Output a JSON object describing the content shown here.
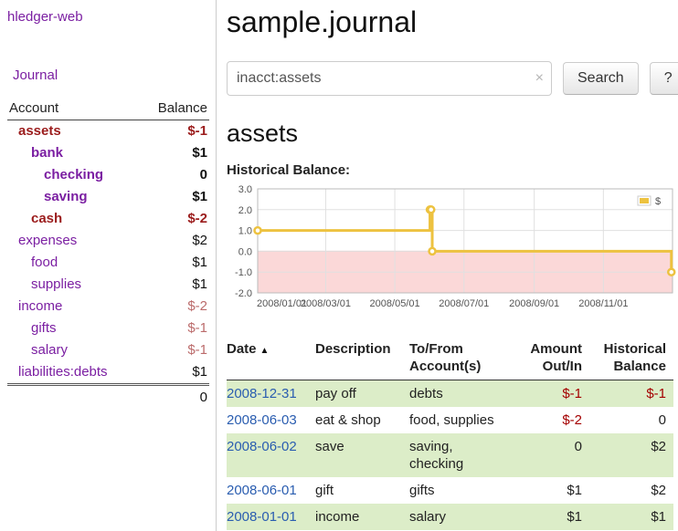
{
  "app": {
    "title": "hledger-web"
  },
  "sidebar": {
    "journal_link": "Journal",
    "headers": {
      "account": "Account",
      "balance": "Balance"
    },
    "accounts": [
      {
        "name": "assets",
        "balance": "$-1"
      },
      {
        "name": "bank",
        "balance": "$1"
      },
      {
        "name": "checking",
        "balance": "0"
      },
      {
        "name": "saving",
        "balance": "$1"
      },
      {
        "name": "cash",
        "balance": "$-2"
      },
      {
        "name": "expenses",
        "balance": "$2"
      },
      {
        "name": "food",
        "balance": "$1"
      },
      {
        "name": "supplies",
        "balance": "$1"
      },
      {
        "name": "income",
        "balance": "$-2"
      },
      {
        "name": "gifts",
        "balance": "$-1"
      },
      {
        "name": "salary",
        "balance": "$-1"
      },
      {
        "name": "liabilities:debts",
        "balance": "$1"
      }
    ],
    "total": "0"
  },
  "main": {
    "title": "sample.journal",
    "search": {
      "value": "inacct:assets",
      "clear_icon": "×",
      "button_label": "Search",
      "help_label": "?"
    },
    "account_heading": "assets",
    "chart_title": "Historical Balance:"
  },
  "chart_data": {
    "type": "line",
    "title": "Historical Balance",
    "steps": true,
    "xrange": [
      "2008-01-01",
      "2009-01-01"
    ],
    "ylim": [
      -2,
      3
    ],
    "series": [
      {
        "name": "$",
        "color": "#edc240",
        "points": [
          [
            "2008-01-01",
            1
          ],
          [
            "2008-06-01",
            2
          ],
          [
            "2008-06-02",
            2
          ],
          [
            "2008-06-03",
            0
          ],
          [
            "2008-12-31",
            -1
          ]
        ]
      }
    ],
    "yticks": [
      {
        "v": 3,
        "label": "3.0"
      },
      {
        "v": 2,
        "label": "2.0"
      },
      {
        "v": 1,
        "label": "1.0"
      },
      {
        "v": 0,
        "label": "0.0"
      },
      {
        "v": -1,
        "label": "-1.0"
      },
      {
        "v": -2,
        "label": "-2.0"
      }
    ],
    "xticks": [
      {
        "date": "2008-01-01",
        "label": "2008/01/01"
      },
      {
        "date": "2008-03-01",
        "label": "2008/03/01"
      },
      {
        "date": "2008-05-01",
        "label": "2008/05/01"
      },
      {
        "date": "2008-07-01",
        "label": "2008/07/01"
      },
      {
        "date": "2008-09-01",
        "label": "2008/09/01"
      },
      {
        "date": "2008-11-01",
        "label": "2008/11/01"
      }
    ],
    "negative_region": {
      "from": -2,
      "to": 0,
      "color": "#fbd8d8",
      "edge": "#f3b4b4"
    },
    "legend": {
      "label": "$",
      "position": "top-right"
    },
    "grid": true
  },
  "register": {
    "headers": {
      "date": "Date",
      "description": "Description",
      "account": "To/From Account(s)",
      "amount": "Amount Out/In",
      "balance": "Historical Balance"
    },
    "sort_icon": "▲",
    "rows": [
      {
        "date": "2008-12-31",
        "description": "pay off",
        "accounts": "debts",
        "amount": "$-1",
        "balance": "$-1"
      },
      {
        "date": "2008-06-03",
        "description": "eat & shop",
        "accounts": "food, supplies",
        "amount": "$-2",
        "balance": "0"
      },
      {
        "date": "2008-06-02",
        "description": "save",
        "accounts": "saving, checking",
        "amount": "0",
        "balance": "$2"
      },
      {
        "date": "2008-06-01",
        "description": "gift",
        "accounts": "gifts",
        "amount": "$1",
        "balance": "$2"
      },
      {
        "date": "2008-01-01",
        "description": "income",
        "accounts": "salary",
        "amount": "$1",
        "balance": "$1"
      }
    ]
  }
}
